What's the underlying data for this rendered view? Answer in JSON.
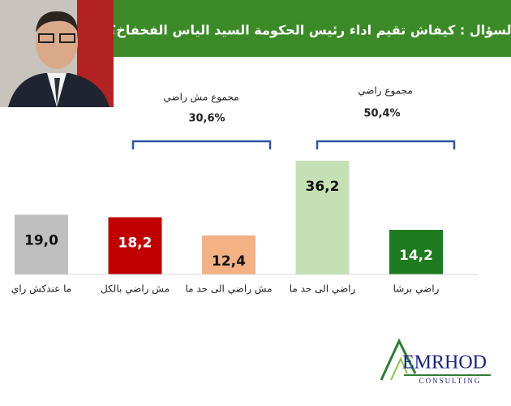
{
  "chart_data": {
    "type": "bar",
    "title": "السؤال : كيفاش تقيم اداء رئيس الحكومة السيد الياس الفخفاخ؟",
    "categories": [
      "ما عندكش راي",
      "مش راضي بالكل",
      "مش راضي الى حد ما",
      "راضي الى حد ما",
      "راضي برشا"
    ],
    "values": [
      19.0,
      18.2,
      12.4,
      36.2,
      14.2
    ],
    "value_labels": [
      "19,0",
      "18,2",
      "12,4",
      "36,2",
      "14,2"
    ],
    "colors": [
      "#bfbfbf",
      "#c00000",
      "#f4b183",
      "#c5e0b4",
      "#1e7a1e"
    ],
    "value_label_colors": [
      "#111111",
      "#ffffff",
      "#111111",
      "#111111",
      "#ffffff"
    ],
    "annotations": [
      {
        "label": "مجموع مش راضي",
        "value_label": "30,6%"
      },
      {
        "label": "مجموع راضي",
        "value_label": "50,4%"
      }
    ],
    "logo": {
      "name": "EMRHOD",
      "subtitle": "CONSULTING"
    }
  }
}
